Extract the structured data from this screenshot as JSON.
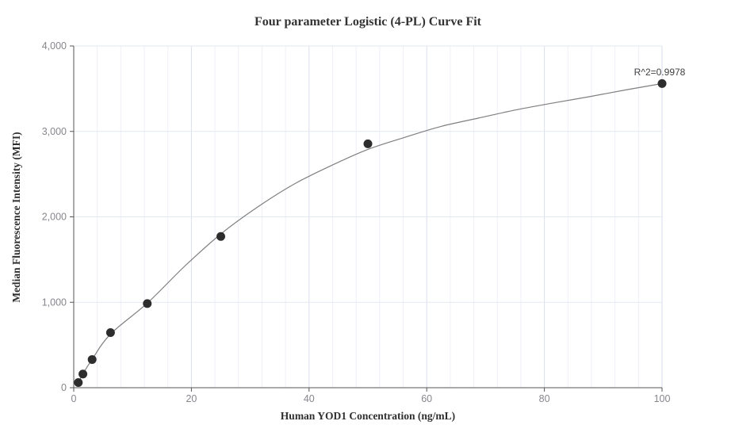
{
  "title": "Four parameter Logistic (4-PL) Curve Fit",
  "annotation": {
    "r_squared_label": "R^2=0.9978"
  },
  "chart_data": {
    "type": "scatter",
    "title": "Four parameter Logistic (4-PL) Curve Fit",
    "xlabel": "Human YOD1 Concentration (ng/mL)",
    "ylabel": "Median Fluorescence Intensity (MFI)",
    "xlim": [
      0,
      100
    ],
    "ylim": [
      0,
      4000
    ],
    "x_tick_values": [
      0,
      20,
      40,
      60,
      80,
      100
    ],
    "x_tick_labels": [
      "0",
      "20",
      "40",
      "60",
      "80",
      "100"
    ],
    "y_tick_values": [
      0,
      1000,
      2000,
      3000,
      4000
    ],
    "y_tick_labels": [
      "0",
      "1,000",
      "2,000",
      "3,000",
      "4,000"
    ],
    "x_minor_grid_interval": 4,
    "grid": "on",
    "legend": "none",
    "r_squared": 0.9978,
    "series": [
      {
        "name": "standard-points",
        "type": "scatter",
        "points": [
          {
            "x": 0.78,
            "y": 60
          },
          {
            "x": 1.56,
            "y": 160
          },
          {
            "x": 3.125,
            "y": 330
          },
          {
            "x": 6.25,
            "y": 645
          },
          {
            "x": 12.5,
            "y": 985
          },
          {
            "x": 25,
            "y": 1770
          },
          {
            "x": 50,
            "y": 2855
          },
          {
            "x": 100,
            "y": 3560
          }
        ]
      },
      {
        "name": "4pl-fit-curve",
        "type": "line",
        "points": [
          [
            0.3,
            25
          ],
          [
            0.78,
            62
          ],
          [
            1.56,
            163
          ],
          [
            3.125,
            332
          ],
          [
            6.25,
            628
          ],
          [
            12.5,
            990
          ],
          [
            18.75,
            1415
          ],
          [
            25,
            1800
          ],
          [
            31.25,
            2115
          ],
          [
            37.5,
            2385
          ],
          [
            43.75,
            2600
          ],
          [
            50,
            2790
          ],
          [
            56.25,
            2930
          ],
          [
            62.5,
            3060
          ],
          [
            68.75,
            3155
          ],
          [
            75,
            3250
          ],
          [
            81.25,
            3330
          ],
          [
            87.5,
            3405
          ],
          [
            93.75,
            3485
          ],
          [
            100,
            3560
          ]
        ]
      }
    ],
    "colors": {
      "background": "#ffffff",
      "title_text": "#333333",
      "axis_label_text": "#2f2f2f",
      "tick_label_text": "#86868d",
      "annotation_text": "#404040",
      "axis_line": "#565656",
      "grid_horizontal": "#e2e9f3",
      "grid_vertical_minor": "#eef0f8",
      "grid_vertical_major": "#dadeed",
      "fit_curve": "#7f7f7f",
      "point_fill": "#2d2d2d"
    }
  }
}
